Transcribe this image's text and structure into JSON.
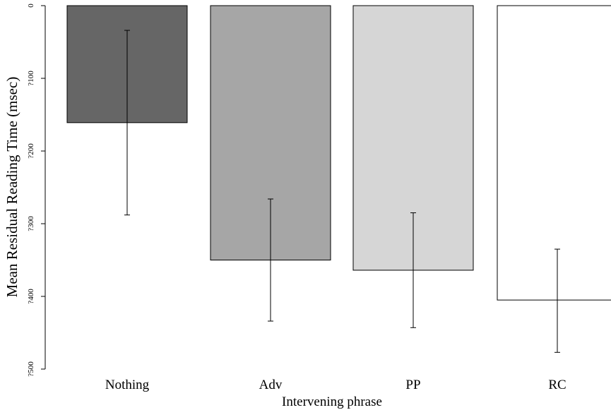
{
  "chart_data": {
    "type": "bar",
    "title": "",
    "xlabel": "Intervening phrase",
    "ylabel": "Mean Residual Reading Time (msec)",
    "categories": [
      "Nothing",
      "Adv",
      "PP",
      "RC"
    ],
    "values": [
      -161,
      -350,
      -364,
      -405
    ],
    "error_bars": {
      "upper": [
        -34,
        -266,
        -285,
        -335
      ],
      "lower": [
        -288,
        -434,
        -443,
        -477
      ]
    },
    "bar_colors": [
      "#666666",
      "#a6a6a6",
      "#d6d6d6",
      "#ffffff"
    ],
    "ylim": [
      -500,
      0
    ],
    "yticks": [
      0,
      -100,
      -200,
      -300,
      -400,
      -500
    ],
    "ytick_labels": [
      "0",
      "?100",
      "?200",
      "?300",
      "?400",
      "?500"
    ],
    "grid": false,
    "legend": false
  }
}
